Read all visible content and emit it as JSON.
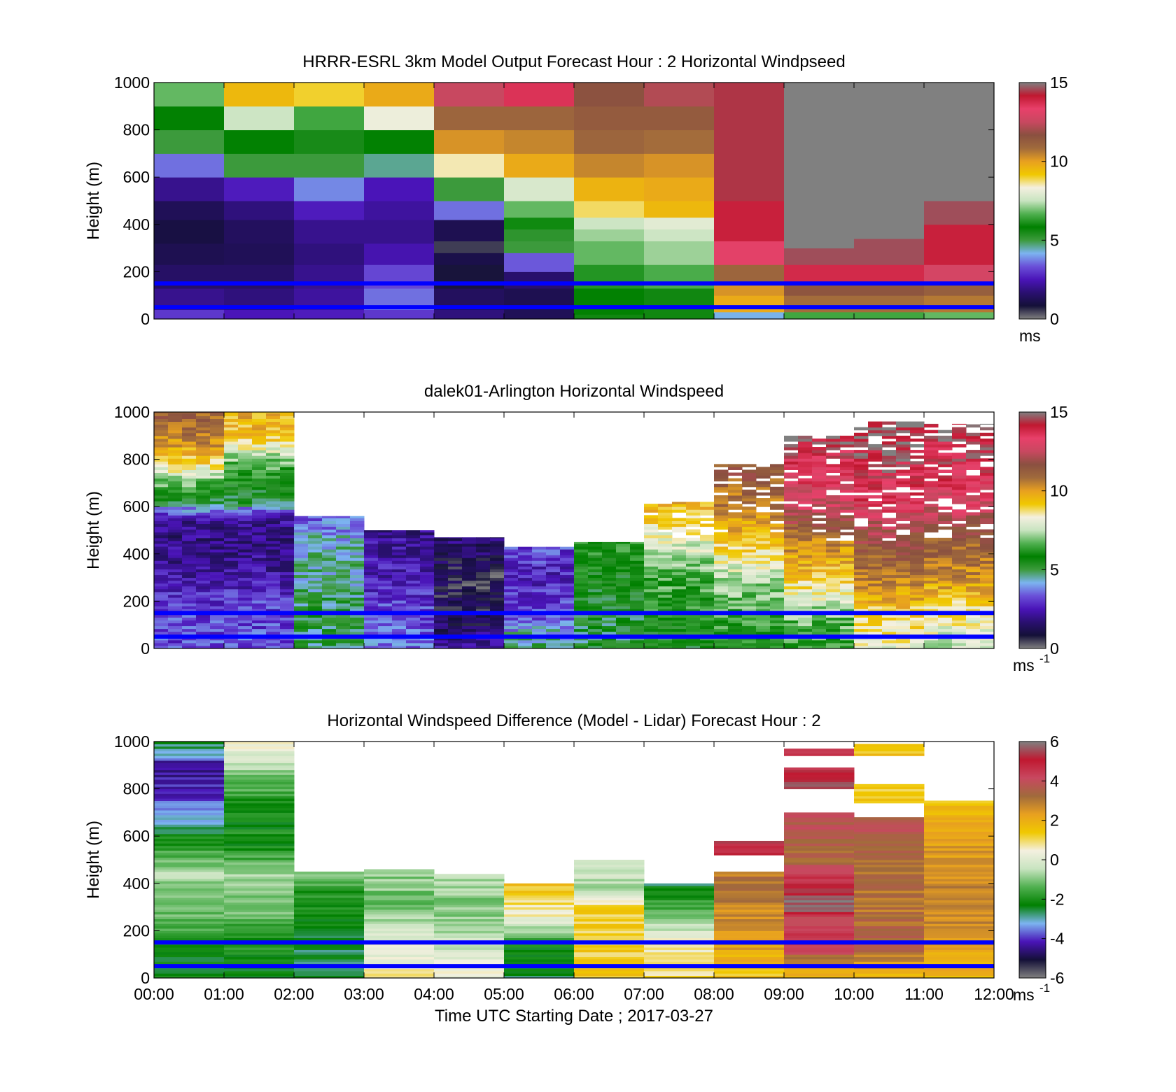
{
  "colors": {
    "windspeed_scale": [
      "#808080",
      "#141038",
      "#2a1070",
      "#4a14b8",
      "#6a50d8",
      "#7cb4f0",
      "#3c9a3c",
      "#008000",
      "#50b050",
      "#c8e4c0",
      "#f4f0e0",
      "#f0c800",
      "#e8a020",
      "#a06a3c",
      "#8a5040",
      "#c84860",
      "#e8406a",
      "#c01830",
      "#808080"
    ],
    "difference_scale": [
      "#808080",
      "#141038",
      "#4a14b8",
      "#7cb4f0",
      "#008000",
      "#50b050",
      "#c8e4c0",
      "#f4f0e0",
      "#f0c800",
      "#e8a020",
      "#a06a3c",
      "#c84860",
      "#c01830",
      "#808080"
    ],
    "reference_line": "#0000ff",
    "missing": "#ffffff"
  },
  "chart_data": [
    {
      "type": "heatmap",
      "title": "HRRR-ESRL 3km Model Output   Forecast Hour : 2 Horizontal Windpseed",
      "ylabel": "Height (m)",
      "xlabel": "",
      "ylim": [
        0,
        1000
      ],
      "yticks": [
        "0",
        "200",
        "400",
        "600",
        "800",
        "1000"
      ],
      "x_hours": [
        0,
        1,
        2,
        3,
        4,
        5,
        6,
        7,
        8,
        9,
        10,
        11,
        12
      ],
      "colorbar": {
        "ticks": [
          "0",
          "5",
          "10",
          "15"
        ],
        "unit": "ms",
        "unit_sup": "",
        "range": [
          0,
          15
        ]
      },
      "reference_heights": [
        150,
        50
      ],
      "kind": "model"
    },
    {
      "type": "heatmap",
      "title": "dalek01-Arlington  Horizontal Windspeed",
      "ylabel": "Height (m)",
      "xlabel": "",
      "ylim": [
        0,
        1000
      ],
      "yticks": [
        "0",
        "200",
        "400",
        "600",
        "800",
        "1000"
      ],
      "x_hours": [
        0,
        1,
        2,
        3,
        4,
        5,
        6,
        7,
        8,
        9,
        10,
        11,
        12
      ],
      "colorbar": {
        "ticks": [
          "0",
          "5",
          "10",
          "15"
        ],
        "unit": "ms",
        "unit_sup": "-1",
        "range": [
          0,
          15
        ]
      },
      "reference_heights": [
        150,
        50
      ],
      "kind": "lidar"
    },
    {
      "type": "heatmap",
      "title": "Horizontal Windspeed Difference (Model - Lidar) Forecast Hour : 2",
      "ylabel": "Height (m)",
      "xlabel": "Time UTC  Starting Date ; 2017-03-27",
      "ylim": [
        0,
        1000
      ],
      "yticks": [
        "0",
        "200",
        "400",
        "600",
        "800",
        "1000"
      ],
      "x_hours": [
        0,
        1,
        2,
        3,
        4,
        5,
        6,
        7,
        8,
        9,
        10,
        11,
        12
      ],
      "xticks": [
        "00:00",
        "01:00",
        "02:00",
        "03:00",
        "04:00",
        "05:00",
        "06:00",
        "07:00",
        "08:00",
        "09:00",
        "10:00",
        "11:00",
        "12:00"
      ],
      "colorbar": {
        "ticks": [
          "-6",
          "-4",
          "-2",
          "0",
          "2",
          "4",
          "6"
        ],
        "unit": "ms",
        "unit_sup": "-1",
        "range": [
          -6,
          6
        ]
      },
      "reference_heights": [
        150,
        50
      ],
      "kind": "difference"
    }
  ]
}
